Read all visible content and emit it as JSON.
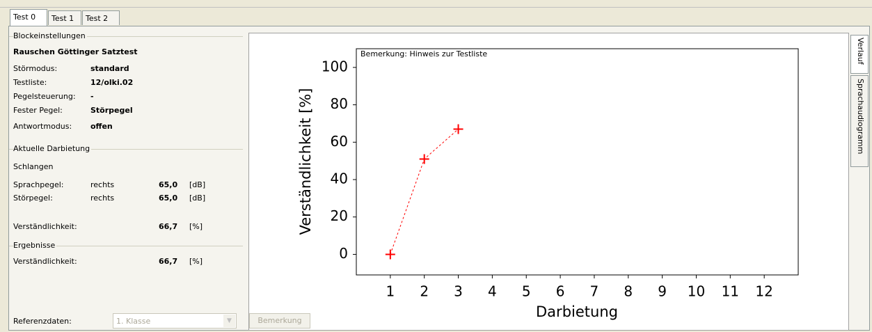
{
  "tabs": [
    "Test 0",
    "Test 1",
    "Test 2"
  ],
  "side_tabs": [
    "Verlauf",
    "Sprachaudiogramm"
  ],
  "block_settings": {
    "title": "Blockeinstellungen",
    "name": "Rauschen Göttinger Satztest",
    "rows": [
      {
        "label": "Störmodus:",
        "value": "standard"
      },
      {
        "label": "Testliste:",
        "value": "12/olki.02"
      },
      {
        "label": "Pegelsteuerung:",
        "value": "-"
      },
      {
        "label": "Fester Pegel:",
        "value": "Störpegel"
      },
      {
        "label": "Antwortmodus:",
        "value": "offen"
      }
    ]
  },
  "current": {
    "title": "Aktuelle Darbietung",
    "name": "Schlangen",
    "rows": [
      {
        "label": "Sprachpegel:",
        "side": "rechts",
        "value": "65,0",
        "unit": "[dB]"
      },
      {
        "label": "Störpegel:",
        "side": "rechts",
        "value": "65,0",
        "unit": "[dB]"
      }
    ],
    "intelligibility": {
      "label": "Verständlichkeit:",
      "value": "66,7",
      "unit": "[%]"
    }
  },
  "results": {
    "title": "Ergebnisse",
    "rows": [
      {
        "label": "Verständlichkeit:",
        "value": "66,7",
        "unit": "[%]"
      }
    ]
  },
  "reference": {
    "label": "Referenzdaten:",
    "value": "1. Klasse"
  },
  "button": "Bemerkung",
  "chart_data": {
    "type": "line",
    "annotation": "Bemerkung: Hinweis zur Testliste",
    "x_label": "Darbietung",
    "y_label": "Verständlichkeit [%]",
    "x": [
      1,
      2,
      3
    ],
    "values": [
      0,
      51,
      67
    ],
    "color": "#ff0000",
    "xlim": [
      0,
      13
    ],
    "xticks": [
      1,
      2,
      3,
      4,
      5,
      6,
      7,
      8,
      9,
      10,
      11,
      12
    ],
    "ylim": [
      -11,
      110
    ],
    "yticks": [
      0,
      20,
      40,
      60,
      80,
      100
    ]
  }
}
